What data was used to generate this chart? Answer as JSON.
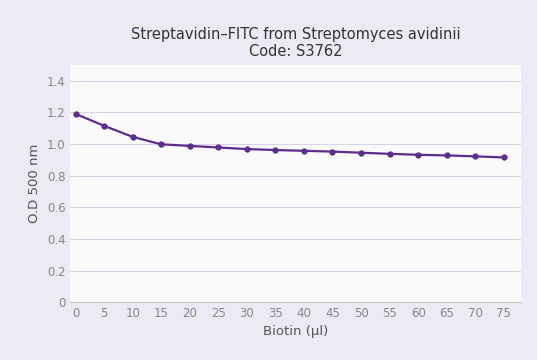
{
  "title_line1": "Streptavidin–FITC from Streptomyces avidinii",
  "title_line2": "Code: S3762",
  "xlabel": "Biotin (µl)",
  "ylabel": "O.D 500 nm",
  "x": [
    0,
    5,
    10,
    15,
    20,
    25,
    30,
    35,
    40,
    45,
    50,
    55,
    60,
    65,
    70,
    75
  ],
  "y": [
    1.19,
    1.115,
    1.045,
    0.998,
    0.988,
    0.978,
    0.968,
    0.962,
    0.957,
    0.952,
    0.945,
    0.938,
    0.932,
    0.928,
    0.922,
    0.915
  ],
  "xlim": [
    -1,
    78
  ],
  "ylim": [
    0,
    1.5
  ],
  "yticks": [
    0,
    0.2,
    0.4,
    0.6,
    0.8,
    1.0,
    1.2,
    1.4
  ],
  "xticks": [
    0,
    5,
    10,
    15,
    20,
    25,
    30,
    35,
    40,
    45,
    50,
    55,
    60,
    65,
    70,
    75
  ],
  "line_color": "#5b2d8e",
  "marker": "o",
  "marker_size": 3.5,
  "line_width": 1.6,
  "background_color": "#ede9f5",
  "plot_bg_color": "#fafafa",
  "grid_color": "#d8d4e8",
  "title_fontsize": 10.5,
  "axis_label_fontsize": 9.5,
  "tick_fontsize": 8.5,
  "tick_color": "#888888",
  "spine_color": "#cccccc"
}
